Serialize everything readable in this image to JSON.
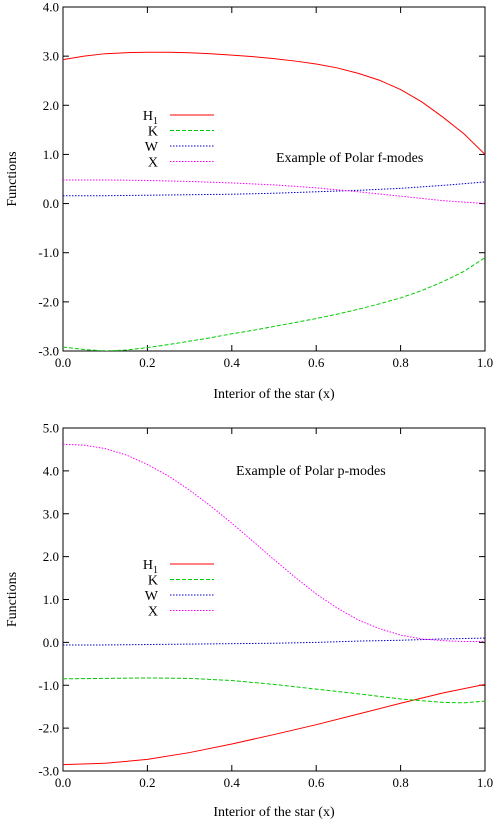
{
  "chart_data": [
    {
      "type": "line",
      "title": "",
      "annotation": "Example of Polar f-modes",
      "xlabel": "Interior of the star (x)",
      "ylabel": "Functions",
      "xlim": [
        0.0,
        1.0
      ],
      "ylim": [
        -3.0,
        4.0
      ],
      "xticks": [
        "0.0",
        "0.2",
        "0.4",
        "0.6",
        "0.8",
        "1.0"
      ],
      "yticks": [
        "-3.0",
        "-2.0",
        "-1.0",
        "0.0",
        "1.0",
        "2.0",
        "3.0",
        "4.0"
      ],
      "legend_position": "left-center",
      "series": [
        {
          "name": "H",
          "subscript": "1",
          "color": "#ff0000",
          "dash": "solid",
          "x": [
            0.0,
            0.05,
            0.1,
            0.15,
            0.2,
            0.25,
            0.3,
            0.35,
            0.4,
            0.45,
            0.5,
            0.55,
            0.6,
            0.65,
            0.7,
            0.75,
            0.8,
            0.85,
            0.9,
            0.95,
            1.0
          ],
          "y": [
            2.93,
            3.0,
            3.05,
            3.07,
            3.08,
            3.08,
            3.07,
            3.05,
            3.02,
            2.99,
            2.95,
            2.9,
            2.84,
            2.76,
            2.65,
            2.51,
            2.32,
            2.07,
            1.76,
            1.42,
            1.0
          ]
        },
        {
          "name": "K",
          "color": "#00cc00",
          "dash": "dashed",
          "x": [
            0.0,
            0.05,
            0.1,
            0.15,
            0.2,
            0.25,
            0.3,
            0.35,
            0.4,
            0.45,
            0.5,
            0.55,
            0.6,
            0.65,
            0.7,
            0.75,
            0.8,
            0.85,
            0.9,
            0.95,
            1.0
          ],
          "y": [
            -2.92,
            -2.97,
            -3.0,
            -2.98,
            -2.93,
            -2.87,
            -2.8,
            -2.73,
            -2.65,
            -2.58,
            -2.5,
            -2.42,
            -2.34,
            -2.25,
            -2.15,
            -2.04,
            -1.92,
            -1.77,
            -1.59,
            -1.38,
            -1.1
          ]
        },
        {
          "name": "W",
          "color": "#0000cc",
          "dash": "dotted",
          "x": [
            0.0,
            0.1,
            0.2,
            0.3,
            0.4,
            0.5,
            0.6,
            0.7,
            0.8,
            0.9,
            1.0
          ],
          "y": [
            0.16,
            0.16,
            0.17,
            0.18,
            0.19,
            0.21,
            0.24,
            0.27,
            0.31,
            0.37,
            0.44
          ]
        },
        {
          "name": "X",
          "color": "#ff00ff",
          "dash": "dotted",
          "x": [
            0.0,
            0.1,
            0.2,
            0.3,
            0.4,
            0.5,
            0.6,
            0.7,
            0.8,
            0.9,
            1.0
          ],
          "y": [
            0.48,
            0.48,
            0.47,
            0.45,
            0.42,
            0.38,
            0.32,
            0.24,
            0.15,
            0.06,
            0.0
          ]
        }
      ]
    },
    {
      "type": "line",
      "title": "",
      "annotation": "Example of Polar p-modes",
      "xlabel": "Interior of the star (x)",
      "ylabel": "Functions",
      "xlim": [
        0.0,
        1.0
      ],
      "ylim": [
        -3.0,
        5.0
      ],
      "xticks": [
        "0.0",
        "0.2",
        "0.4",
        "0.6",
        "0.8",
        "1.0"
      ],
      "yticks": [
        "-3.0",
        "-2.0",
        "-1.0",
        "0.0",
        "1.0",
        "2.0",
        "3.0",
        "4.0",
        "5.0"
      ],
      "legend_position": "left-center",
      "series": [
        {
          "name": "H",
          "subscript": "1",
          "color": "#ff0000",
          "dash": "solid",
          "x": [
            0.0,
            0.1,
            0.2,
            0.3,
            0.4,
            0.5,
            0.6,
            0.7,
            0.8,
            0.9,
            1.0
          ],
          "y": [
            -2.85,
            -2.82,
            -2.73,
            -2.57,
            -2.37,
            -2.15,
            -1.92,
            -1.67,
            -1.42,
            -1.18,
            -0.98
          ]
        },
        {
          "name": "K",
          "color": "#00cc00",
          "dash": "dashed",
          "x": [
            0.0,
            0.1,
            0.2,
            0.3,
            0.4,
            0.5,
            0.6,
            0.7,
            0.8,
            0.9,
            0.95,
            1.0
          ],
          "y": [
            -0.85,
            -0.84,
            -0.83,
            -0.84,
            -0.89,
            -0.98,
            -1.09,
            -1.2,
            -1.32,
            -1.4,
            -1.41,
            -1.37
          ]
        },
        {
          "name": "W",
          "color": "#0000cc",
          "dash": "dotted",
          "x": [
            0.0,
            0.1,
            0.2,
            0.3,
            0.4,
            0.5,
            0.6,
            0.7,
            0.8,
            0.9,
            1.0
          ],
          "y": [
            -0.06,
            -0.06,
            -0.05,
            -0.04,
            -0.03,
            -0.02,
            0.0,
            0.03,
            0.05,
            0.08,
            0.1
          ]
        },
        {
          "name": "X",
          "color": "#ff00ff",
          "dash": "dotted",
          "x": [
            0.0,
            0.05,
            0.1,
            0.15,
            0.2,
            0.25,
            0.3,
            0.35,
            0.4,
            0.45,
            0.5,
            0.55,
            0.6,
            0.65,
            0.7,
            0.75,
            0.8,
            0.85,
            0.9,
            0.95,
            1.0
          ],
          "y": [
            4.62,
            4.6,
            4.52,
            4.37,
            4.15,
            3.88,
            3.55,
            3.18,
            2.78,
            2.36,
            1.93,
            1.52,
            1.13,
            0.8,
            0.52,
            0.32,
            0.17,
            0.08,
            0.04,
            0.02,
            0.02
          ]
        }
      ]
    }
  ]
}
